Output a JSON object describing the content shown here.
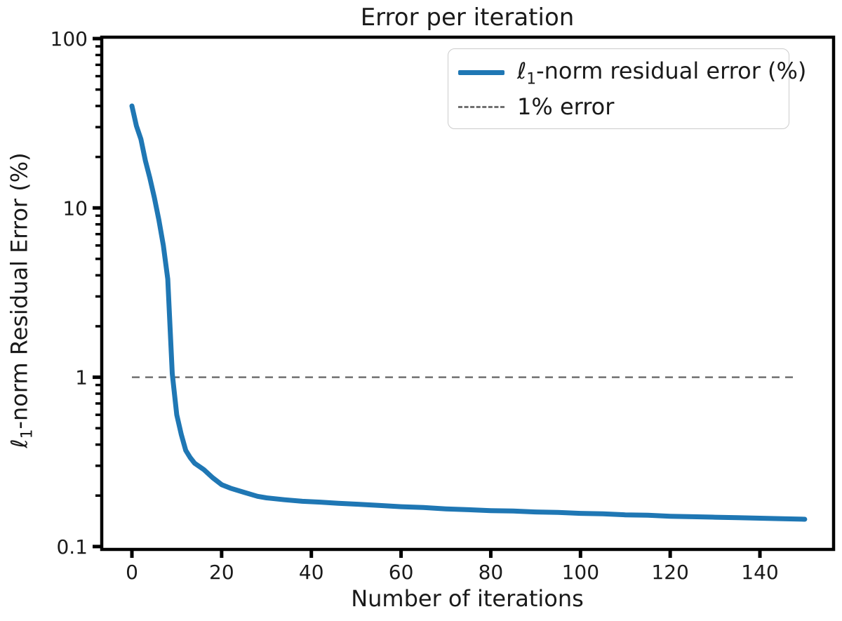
{
  "title": "Error per iteration",
  "axes": {
    "xlabel": "Number of iterations",
    "ylabel": {
      "ell": "ℓ",
      "sub": "1",
      "rest": "-norm Residual Error (%)"
    },
    "x_ticks": [
      0,
      20,
      40,
      60,
      80,
      100,
      120,
      140
    ],
    "y_ticks": [
      {
        "label": "100",
        "value": 100
      },
      {
        "label": "10",
        "value": 10
      },
      {
        "label": "1",
        "value": 1
      },
      {
        "label": "0.1",
        "value": 0.1
      }
    ]
  },
  "legend": {
    "entries": [
      {
        "ell": "ℓ",
        "sub": "1",
        "rest": "-norm residual error (%)",
        "color": "#1f77b4",
        "style": "solid"
      },
      {
        "label": "1% error",
        "color": "#707070",
        "style": "dashed"
      }
    ]
  },
  "colors": {
    "series_blue": "#1f77b4",
    "reference_gray": "#707070",
    "spine_black": "#000000",
    "text": "#1a1a1a"
  },
  "chart_data": {
    "type": "line",
    "title": "Error per iteration",
    "xlabel": "Number of iterations",
    "ylabel": "ℓ1-norm Residual Error (%)",
    "y_scale": "log",
    "xlim": [
      -6.7,
      156.5
    ],
    "ylim": [
      0.096,
      102
    ],
    "x_ticks": [
      0,
      20,
      40,
      60,
      80,
      100,
      120,
      140
    ],
    "y_ticks": [
      100,
      10,
      1,
      0.1
    ],
    "grid": false,
    "legend_position": "upper right",
    "series": [
      {
        "name": "ℓ1-norm residual error (%)",
        "color": "#1f77b4",
        "points": [
          [
            0,
            40
          ],
          [
            1,
            30.5
          ],
          [
            2,
            25.5
          ],
          [
            3,
            19
          ],
          [
            4,
            15
          ],
          [
            5,
            11.5
          ],
          [
            6,
            8.5
          ],
          [
            7,
            6.0
          ],
          [
            8,
            3.8
          ],
          [
            9,
            1.05
          ],
          [
            10,
            0.6
          ],
          [
            11,
            0.46
          ],
          [
            12,
            0.37
          ],
          [
            13,
            0.335
          ],
          [
            14,
            0.31
          ],
          [
            16,
            0.285
          ],
          [
            18,
            0.255
          ],
          [
            20,
            0.232
          ],
          [
            22,
            0.221
          ],
          [
            25,
            0.209
          ],
          [
            28,
            0.198
          ],
          [
            30,
            0.194
          ],
          [
            34,
            0.189
          ],
          [
            38,
            0.185
          ],
          [
            42,
            0.183
          ],
          [
            46,
            0.18
          ],
          [
            50,
            0.178
          ],
          [
            55,
            0.175
          ],
          [
            60,
            0.172
          ],
          [
            65,
            0.17
          ],
          [
            70,
            0.167
          ],
          [
            75,
            0.165
          ],
          [
            80,
            0.163
          ],
          [
            85,
            0.162
          ],
          [
            90,
            0.16
          ],
          [
            95,
            0.159
          ],
          [
            100,
            0.157
          ],
          [
            105,
            0.156
          ],
          [
            110,
            0.154
          ],
          [
            115,
            0.153
          ],
          [
            120,
            0.151
          ],
          [
            125,
            0.15
          ],
          [
            130,
            0.149
          ],
          [
            135,
            0.148
          ],
          [
            140,
            0.147
          ],
          [
            145,
            0.146
          ],
          [
            150,
            0.145
          ]
        ]
      }
    ],
    "reference_line": {
      "label": "1% error",
      "value": 1.0,
      "color": "#707070",
      "style": "dashed",
      "x_range": [
        0,
        148.5
      ]
    }
  }
}
